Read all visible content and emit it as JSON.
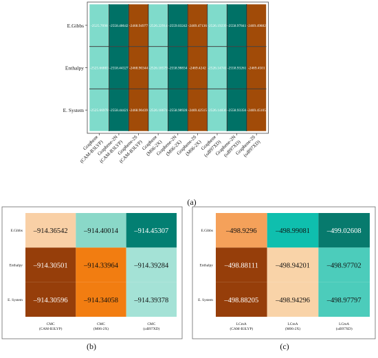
{
  "chart_data": [
    {
      "type": "heatmap",
      "panel_label": "(a)",
      "rows": [
        "E.Gibbs",
        "Enthalpy",
        "E. System"
      ],
      "columns": [
        [
          "Graphene",
          "(CAM-B3LYP)"
        ],
        [
          "Graphene-2N",
          "(CAM-B3LYP)"
        ],
        [
          "Graphene-2S",
          "(CAM-B3LYP)"
        ],
        [
          "Graphene",
          "(M06-2X)"
        ],
        [
          "Graphene-2N",
          "(M06-2X)"
        ],
        [
          "Graphene-2S",
          "(M06-2X)"
        ],
        [
          "Graphene",
          "(ωB97XD)"
        ],
        [
          "Graphene-2N",
          "(ωB97XD)"
        ],
        [
          "Graphene-2S",
          "(ωB97XD)"
        ]
      ],
      "values": [
        [
          "-2525.7098",
          "-2558.48642",
          "-2468.94977",
          "-2526.22914",
          "-2559.03242",
          "-2469.47136",
          "-2526.19239",
          "-2558.97841",
          "-2469.49882"
        ],
        [
          "-2525.66883",
          "-2558.44327",
          "-2468.90344",
          "-2526.18579",
          "-2558.98834",
          "-2469.4242",
          "-2526.14741",
          "-2558.93261",
          "-2469.4501"
        ],
        [
          "-2525.66978",
          "-2558.44421",
          "-2468.90439",
          "-2526.18674",
          "-2558.98928",
          "-2469.42515",
          "-2526.14836",
          "-2558.93356",
          "-2469.45105"
        ]
      ],
      "colors": {
        "#7fdbcb": [
          [
            0,
            0
          ],
          [
            1,
            0
          ],
          [
            2,
            0
          ],
          [
            0,
            3
          ],
          [
            1,
            3
          ],
          [
            2,
            3
          ],
          [
            0,
            6
          ],
          [
            1,
            6
          ],
          [
            2,
            6
          ]
        ],
        "#007166": [
          [
            0,
            1
          ],
          [
            1,
            1
          ],
          [
            2,
            1
          ],
          [
            0,
            4
          ],
          [
            1,
            4
          ],
          [
            2,
            4
          ],
          [
            0,
            7
          ],
          [
            1,
            7
          ],
          [
            2,
            7
          ]
        ],
        "#a14b08": [
          [
            0,
            2
          ],
          [
            1,
            2
          ],
          [
            2,
            2
          ],
          [
            0,
            5
          ],
          [
            1,
            5
          ],
          [
            2,
            5
          ],
          [
            0,
            8
          ],
          [
            1,
            8
          ],
          [
            2,
            8
          ]
        ]
      },
      "grid": true
    },
    {
      "type": "heatmap",
      "panel_label": "(b)",
      "rows": [
        "E.Gibbs",
        "Enthalpy",
        "E. System"
      ],
      "columns": [
        [
          "CMC",
          "(CAM-B3LYP)"
        ],
        [
          "CMC",
          "(M06-2X)"
        ],
        [
          "CMC",
          "(ωB97XD)"
        ]
      ],
      "values": [
        [
          "–914.36542",
          "–914.40014",
          "–914.45307"
        ],
        [
          "–914.30501",
          "–914.33964",
          "–914.39284"
        ],
        [
          "–914.30596",
          "–914.34058",
          "–914.39378"
        ]
      ],
      "colors": [
        [
          "#f9d0a6",
          "#8ad8c8",
          "#037f72"
        ],
        [
          "#963e0a",
          "#f27d11",
          "#a4e2d6"
        ],
        [
          "#963e0a",
          "#f27d11",
          "#a4e2d6"
        ]
      ],
      "text_colors": [
        [
          "#111111",
          "#111111",
          "#ffffff"
        ],
        [
          "#ffffff",
          "#111111",
          "#111111"
        ],
        [
          "#ffffff",
          "#111111",
          "#111111"
        ]
      ],
      "grid": false
    },
    {
      "type": "heatmap",
      "panel_label": "(c)",
      "rows": [
        "E.Gibbs",
        "Enthalpy",
        "E. System"
      ],
      "columns": [
        [
          "LCmA",
          "(CAM-B3LYP)"
        ],
        [
          "LCmA",
          "(M06-2X)"
        ],
        [
          "LCmA",
          "(ωB97XD)"
        ]
      ],
      "values": [
        [
          "–498.9296",
          "–498.99081",
          "–499.02608"
        ],
        [
          "–498.88111",
          "–498.94201",
          "–498.97702"
        ],
        [
          "–498.88205",
          "–498.94296",
          "–498.97797"
        ]
      ],
      "colors": [
        [
          "#f5a15a",
          "#0fbfae",
          "#077a6d"
        ],
        [
          "#963e0a",
          "#f9d3a8",
          "#4cccbb"
        ],
        [
          "#963e0a",
          "#f9d3a8",
          "#4cccbb"
        ]
      ],
      "text_colors": [
        [
          "#111111",
          "#111111",
          "#ffffff"
        ],
        [
          "#ffffff",
          "#111111",
          "#111111"
        ],
        [
          "#ffffff",
          "#111111",
          "#111111"
        ]
      ],
      "grid": false
    }
  ]
}
